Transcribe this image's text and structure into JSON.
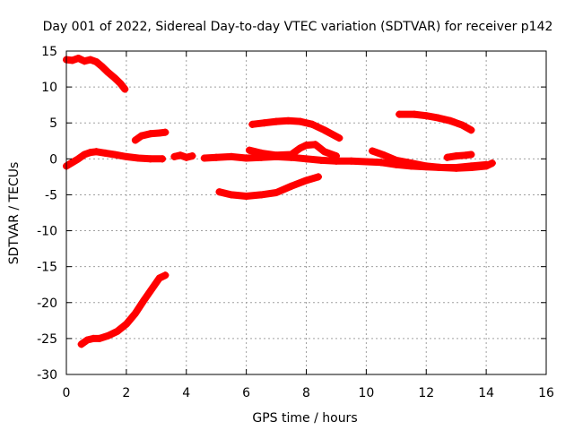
{
  "chart_data": {
    "type": "scatter",
    "title": "Day 001 of 2022, Sidereal Day-to-day VTEC variation (SDTVAR) for receiver p142",
    "xlabel": "GPS time / hours",
    "ylabel": "SDTVAR / TECUs",
    "xlim": [
      0,
      16
    ],
    "ylim": [
      -30,
      15
    ],
    "x_ticks": [
      0,
      2,
      4,
      6,
      8,
      10,
      12,
      14,
      16
    ],
    "y_ticks": [
      15,
      10,
      5,
      0,
      -5,
      -10,
      -15,
      -20,
      -25,
      -30
    ],
    "grid": true,
    "marker_color": "#ff0000",
    "series": [
      {
        "x": [
          0.0,
          0.2,
          0.4,
          0.6,
          0.8,
          1.0,
          1.2,
          1.4,
          1.6,
          1.8,
          1.95
        ],
        "y": [
          13.8,
          13.7,
          14.0,
          13.6,
          13.8,
          13.5,
          12.8,
          12.0,
          11.3,
          10.5,
          9.7
        ]
      },
      {
        "x": [
          0.0,
          0.2,
          0.4,
          0.6,
          0.8,
          1.0,
          1.3,
          1.6,
          2.0,
          2.4,
          2.8,
          3.2
        ],
        "y": [
          -1.0,
          -0.5,
          0.0,
          0.6,
          0.9,
          1.0,
          0.8,
          0.6,
          0.3,
          0.1,
          0.0,
          0.0
        ]
      },
      {
        "x": [
          2.3,
          2.5,
          2.8,
          3.1,
          3.3
        ],
        "y": [
          2.6,
          3.2,
          3.5,
          3.6,
          3.7
        ]
      },
      {
        "x": [
          3.6,
          3.8,
          4.0,
          4.2
        ],
        "y": [
          0.3,
          0.5,
          0.2,
          0.4
        ]
      },
      {
        "x": [
          4.6,
          5.0,
          5.5,
          6.0,
          6.5,
          7.0,
          7.5,
          8.0,
          8.5,
          9.0,
          9.5,
          10.0,
          10.5,
          11.0,
          11.5,
          12.0,
          12.5,
          13.0,
          13.5,
          14.0
        ],
        "y": [
          0.1,
          0.2,
          0.3,
          0.1,
          0.2,
          0.3,
          0.2,
          0.0,
          -0.2,
          -0.3,
          -0.3,
          -0.4,
          -0.5,
          -0.8,
          -1.0,
          -1.1,
          -1.2,
          -1.2,
          -1.0,
          -0.8
        ]
      },
      {
        "x": [
          6.2,
          6.6,
          7.0,
          7.4,
          7.8,
          8.2,
          8.6,
          9.1
        ],
        "y": [
          4.8,
          5.0,
          5.2,
          5.3,
          5.2,
          4.8,
          4.0,
          2.9
        ]
      },
      {
        "x": [
          5.1,
          5.5,
          6.0,
          6.5,
          7.0,
          7.5,
          8.0,
          8.4
        ],
        "y": [
          -4.6,
          -5.0,
          -5.2,
          -5.0,
          -4.7,
          -3.8,
          -3.0,
          -2.5
        ]
      },
      {
        "x": [
          6.1,
          6.5,
          7.0,
          7.5,
          7.8,
          8.0,
          8.3,
          8.6,
          9.0
        ],
        "y": [
          1.2,
          0.8,
          0.5,
          0.6,
          1.5,
          1.9,
          2.0,
          1.0,
          0.4
        ]
      },
      {
        "x": [
          10.2,
          10.6,
          11.0,
          11.5,
          12.0,
          12.5,
          13.0,
          13.5,
          14.0,
          14.2
        ],
        "y": [
          1.1,
          0.5,
          -0.2,
          -0.6,
          -1.0,
          -1.2,
          -1.3,
          -1.2,
          -1.0,
          -0.6
        ]
      },
      {
        "x": [
          11.1,
          11.6,
          12.0,
          12.4,
          12.8,
          13.2,
          13.5
        ],
        "y": [
          6.2,
          6.2,
          6.0,
          5.7,
          5.3,
          4.7,
          4.0
        ]
      },
      {
        "x": [
          12.7,
          13.0,
          13.3,
          13.5
        ],
        "y": [
          0.2,
          0.4,
          0.5,
          0.6
        ]
      },
      {
        "x": [
          0.5,
          0.7,
          0.9,
          1.1,
          1.4,
          1.7,
          2.0,
          2.3,
          2.6,
          2.9,
          3.1,
          3.3
        ],
        "y": [
          -25.8,
          -25.2,
          -25.0,
          -25.0,
          -24.6,
          -24.0,
          -23.0,
          -21.5,
          -19.6,
          -17.8,
          -16.6,
          -16.2
        ]
      }
    ]
  }
}
